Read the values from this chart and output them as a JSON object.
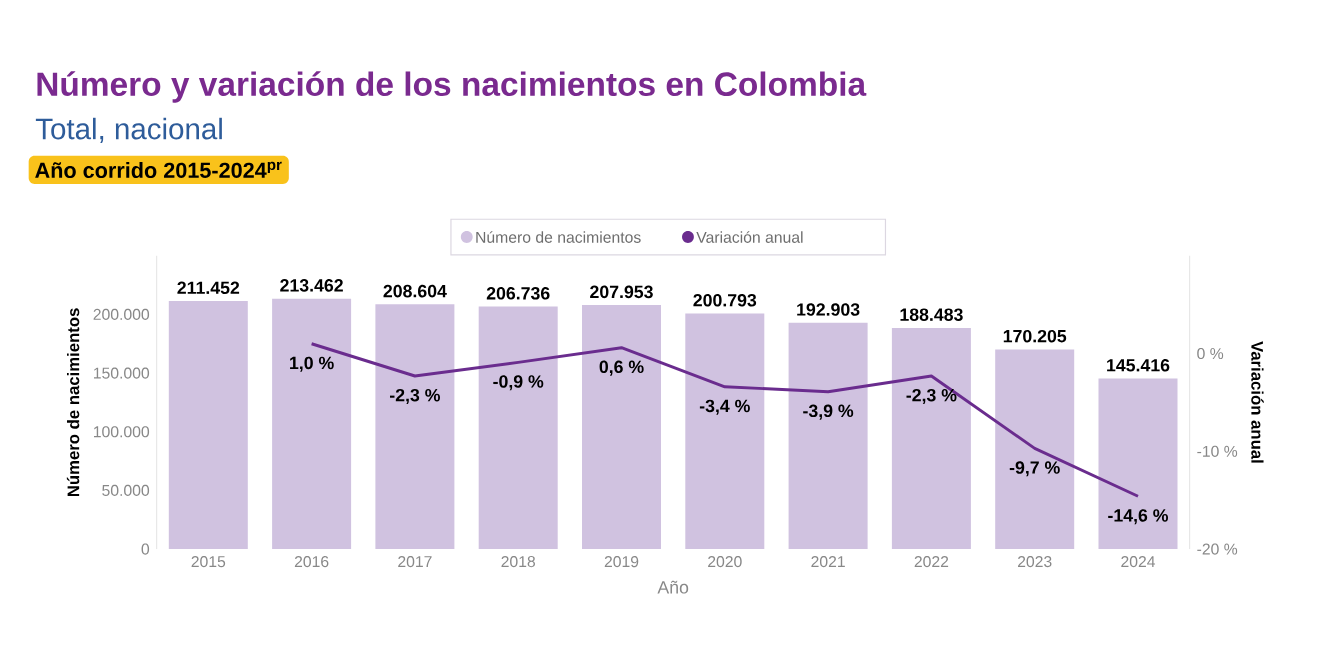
{
  "chart_data": {
    "type": "bar",
    "title": "Número y variación de los nacimientos en Colombia",
    "subtitle": "Total, nacional",
    "annotations": [
      "Año corrido 2015-2024$^{pr}$"
    ],
    "categories": [
      "2015",
      "2016",
      "2017",
      "2018",
      "2019",
      "2020",
      "2021",
      "2022",
      "2023",
      "2024"
    ],
    "xlabel": "Año",
    "ylabel": "Número de nacimientos",
    "y2label": "Variación anual",
    "series": [
      {
        "name": "Número de nacimientos",
        "color": "#d0c2e0",
        "values": [
          211452,
          213462,
          208604,
          206736,
          207953,
          200793,
          192903,
          188483,
          170205,
          145416
        ],
        "value_labels": [
          "211.452",
          "213.462",
          "208.604",
          "206.736",
          "207.953",
          "200.793",
          "192.903",
          "188.483",
          "170.205",
          "145.416"
        ]
      },
      {
        "name": "Variación anual",
        "type": "line",
        "axis": "y2",
        "color": "#6a2c8e",
        "values": [
          null,
          1.0,
          -2.3,
          -0.9,
          0.6,
          -3.4,
          -3.9,
          -2.3,
          -9.7,
          -14.6
        ],
        "value_labels": [
          null,
          "1,0 %",
          "-2,3 %",
          "-0,9 %",
          "0,6 %",
          "-3,4 %",
          "-3,9 %",
          "-2,3 %",
          "-9,7 %",
          "-14,6 %"
        ]
      }
    ],
    "ylim": [
      0,
      250000
    ],
    "yticks": [
      {
        "value": 0,
        "label": "0"
      },
      {
        "value": 50000,
        "label": "50.000"
      },
      {
        "value": 100000,
        "label": "100.000"
      },
      {
        "value": 150000,
        "label": "150.000"
      },
      {
        "value": 200000,
        "label": "200.000"
      }
    ],
    "y2lim": [
      -20,
      10
    ],
    "y2ticks": [
      {
        "value": -20,
        "label": "-20 %"
      },
      {
        "value": -10,
        "label": "-10 %"
      },
      {
        "value": 0,
        "label": "0 %"
      }
    ],
    "legend": "top"
  }
}
